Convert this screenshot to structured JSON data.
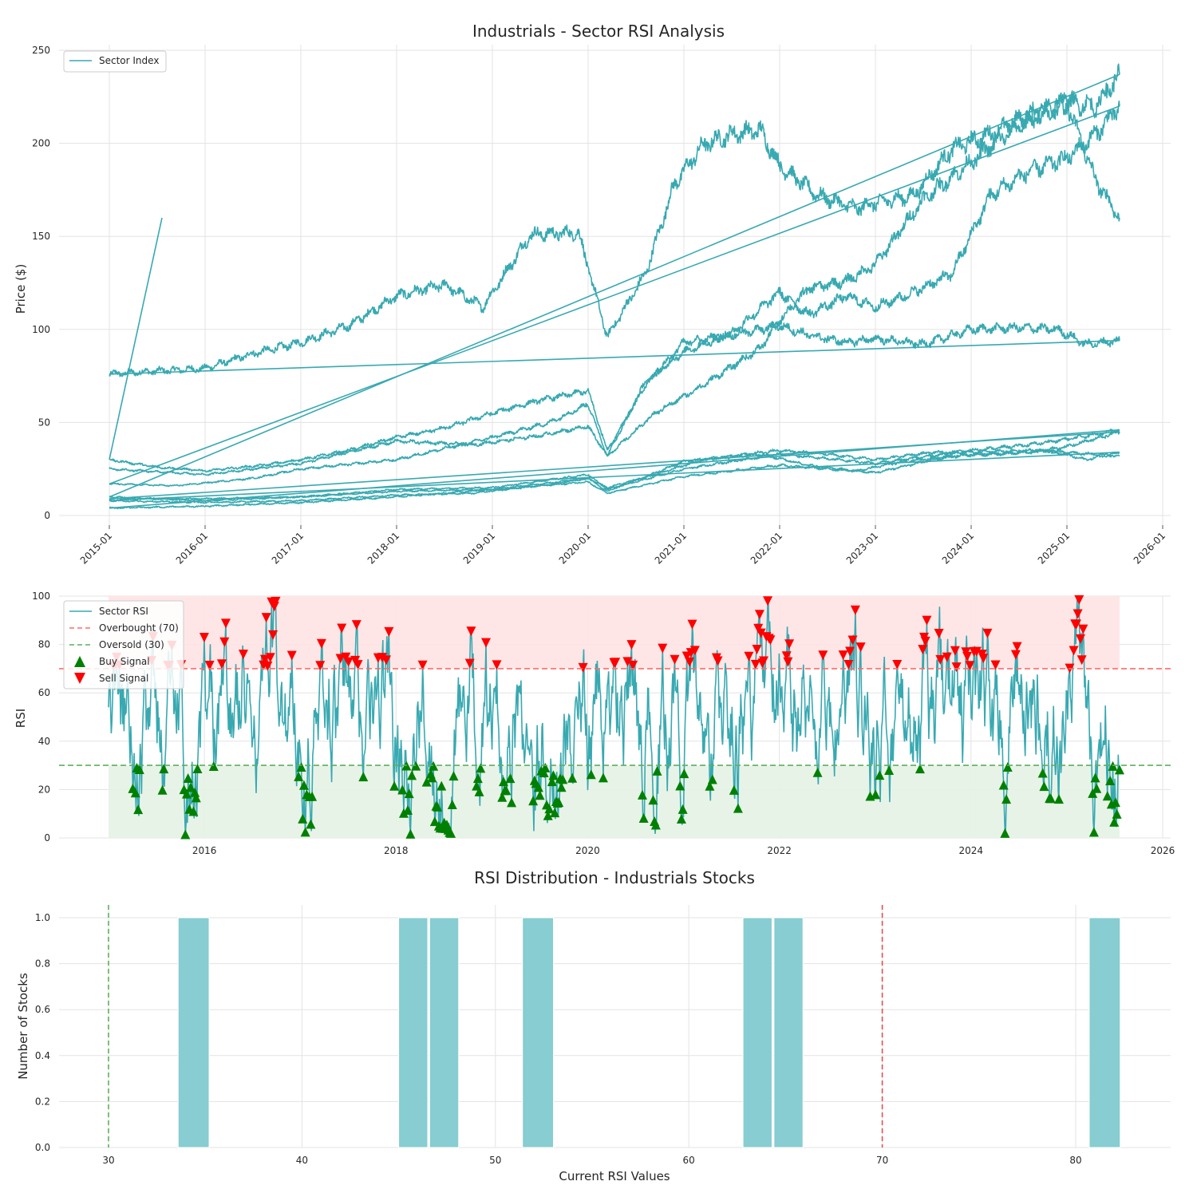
{
  "chart_data": [
    {
      "type": "line",
      "title": "Industrials - Sector RSI Analysis",
      "xlabel": "",
      "ylabel": "Price ($)",
      "ylim": [
        0,
        250
      ],
      "xlim": [
        "2015-01",
        "2026-01"
      ],
      "xticks": [
        "2015-01",
        "2016-01",
        "2017-01",
        "2018-01",
        "2019-01",
        "2020-01",
        "2021-01",
        "2022-01",
        "2023-01",
        "2024-01",
        "2025-01",
        "2026-01"
      ],
      "yticks": [
        0,
        50,
        100,
        150,
        200,
        250
      ],
      "grid": true,
      "legend_position": "top-left",
      "legend": [
        "Sector Index"
      ],
      "line_color": "#38a9b1",
      "series": [
        {
          "values": [
            [
              2015.0,
              76
            ],
            [
              2015.6,
              78
            ],
            [
              2016.0,
              79
            ],
            [
              2016.5,
              87
            ],
            [
              2017.0,
              93
            ],
            [
              2017.5,
              102
            ],
            [
              2018.0,
              118
            ],
            [
              2018.5,
              124
            ],
            [
              2018.9,
              112
            ],
            [
              2019.4,
              151
            ],
            [
              2019.9,
              152
            ],
            [
              2020.2,
              96
            ],
            [
              2020.6,
              130
            ],
            [
              2020.9,
              178
            ],
            [
              2021.2,
              199
            ],
            [
              2021.5,
              205
            ],
            [
              2021.8,
              207
            ],
            [
              2022.0,
              188
            ],
            [
              2022.4,
              172
            ],
            [
              2022.8,
              165
            ],
            [
              2023.0,
              168
            ],
            [
              2023.4,
              172
            ],
            [
              2023.8,
              197
            ],
            [
              2024.2,
              205
            ],
            [
              2024.6,
              215
            ],
            [
              2025.0,
              222
            ],
            [
              2025.3,
              180
            ],
            [
              2025.55,
              160
            ]
          ]
        },
        {
          "values": [
            [
              2015.55,
              160
            ],
            [
              2015.0,
              30
            ]
          ]
        },
        {
          "values": [
            [
              2015.0,
              30
            ],
            [
              2015.5,
              26
            ],
            [
              2016.0,
              24
            ],
            [
              2016.6,
              27
            ],
            [
              2017.0,
              30
            ],
            [
              2017.5,
              35
            ],
            [
              2018.0,
              42
            ],
            [
              2018.5,
              47
            ],
            [
              2019.0,
              55
            ],
            [
              2019.5,
              62
            ],
            [
              2020.0,
              67
            ],
            [
              2020.2,
              35
            ],
            [
              2020.6,
              70
            ],
            [
              2021.0,
              93
            ],
            [
              2021.5,
              97
            ],
            [
              2022.0,
              102
            ],
            [
              2022.3,
              97
            ],
            [
              2022.7,
              93
            ],
            [
              2023.0,
              95
            ],
            [
              2023.5,
              92
            ],
            [
              2024.0,
              100
            ],
            [
              2024.5,
              101
            ],
            [
              2024.9,
              100
            ],
            [
              2025.2,
              92
            ],
            [
              2025.55,
              94
            ]
          ]
        },
        {
          "values": [
            [
              2025.55,
              94
            ],
            [
              2015.0,
              76
            ]
          ]
        },
        {
          "values": [
            [
              2015.0,
              8
            ],
            [
              2016.0,
              7
            ],
            [
              2017.0,
              8
            ],
            [
              2018.0,
              11
            ],
            [
              2018.8,
              12
            ],
            [
              2019.5,
              16
            ],
            [
              2020.0,
              20
            ],
            [
              2020.2,
              15
            ],
            [
              2020.7,
              22
            ],
            [
              2021.2,
              30
            ],
            [
              2021.8,
              33
            ],
            [
              2022.3,
              27
            ],
            [
              2022.8,
              24
            ],
            [
              2023.3,
              29
            ],
            [
              2023.8,
              32
            ],
            [
              2024.3,
              33
            ],
            [
              2024.8,
              35
            ],
            [
              2025.2,
              30
            ],
            [
              2025.55,
              34
            ]
          ]
        },
        {
          "values": [
            [
              2025.55,
              34
            ],
            [
              2015.0,
              8
            ]
          ]
        },
        {
          "values": [
            [
              2015.0,
              17
            ],
            [
              2015.7,
              16
            ],
            [
              2016.5,
              20
            ],
            [
              2017.0,
              25
            ],
            [
              2018.0,
              30
            ],
            [
              2019.0,
              42
            ],
            [
              2019.6,
              50
            ],
            [
              2020.0,
              60
            ],
            [
              2020.2,
              32
            ],
            [
              2020.6,
              72
            ],
            [
              2021.0,
              88
            ],
            [
              2021.5,
              98
            ],
            [
              2022.0,
              120
            ],
            [
              2022.3,
              108
            ],
            [
              2022.7,
              118
            ],
            [
              2023.0,
              112
            ],
            [
              2023.4,
              120
            ],
            [
              2023.8,
              130
            ],
            [
              2024.2,
              172
            ],
            [
              2024.6,
              185
            ],
            [
              2025.0,
              192
            ],
            [
              2025.3,
              205
            ],
            [
              2025.55,
              220
            ]
          ]
        },
        {
          "values": [
            [
              2025.55,
              220
            ],
            [
              2015.0,
              17
            ]
          ]
        },
        {
          "values": [
            [
              2015.0,
              25
            ],
            [
              2016.0,
              22
            ],
            [
              2017.0,
              28
            ],
            [
              2018.0,
              40
            ],
            [
              2018.8,
              38
            ],
            [
              2019.5,
              43
            ],
            [
              2020.0,
              48
            ],
            [
              2020.2,
              32
            ],
            [
              2020.7,
              55
            ],
            [
              2021.2,
              70
            ],
            [
              2021.8,
              90
            ],
            [
              2022.0,
              105
            ],
            [
              2022.3,
              122
            ],
            [
              2022.7,
              126
            ],
            [
              2023.0,
              135
            ],
            [
              2023.5,
              170
            ],
            [
              2024.0,
              190
            ],
            [
              2024.5,
              210
            ],
            [
              2025.0,
              222
            ],
            [
              2025.3,
              220
            ],
            [
              2025.55,
              237
            ]
          ]
        },
        {
          "values": [
            [
              2025.55,
              237
            ],
            [
              2015.0,
              10
            ]
          ]
        },
        {
          "values": [
            [
              2015.0,
              10
            ],
            [
              2016.0,
              8
            ],
            [
              2017.0,
              10
            ],
            [
              2018.0,
              13
            ],
            [
              2019.0,
              14
            ],
            [
              2020.0,
              18
            ],
            [
              2020.2,
              12
            ],
            [
              2021.0,
              21
            ],
            [
              2022.0,
              27
            ],
            [
              2023.0,
              23
            ],
            [
              2023.6,
              30
            ],
            [
              2024.0,
              33
            ],
            [
              2024.6,
              34
            ],
            [
              2025.0,
              37
            ],
            [
              2025.55,
              45
            ]
          ]
        },
        {
          "values": [
            [
              2025.55,
              45
            ],
            [
              2015.0,
              9
            ]
          ]
        },
        {
          "values": [
            [
              2015.0,
              9
            ],
            [
              2016.0,
              9
            ],
            [
              2017.0,
              10
            ],
            [
              2018.0,
              14
            ],
            [
              2019.0,
              15
            ],
            [
              2020.0,
              22
            ],
            [
              2020.2,
              14
            ],
            [
              2021.0,
              25
            ],
            [
              2022.0,
              33
            ],
            [
              2023.0,
              28
            ],
            [
              2024.0,
              35
            ],
            [
              2024.6,
              38
            ],
            [
              2025.0,
              41
            ],
            [
              2025.55,
              46
            ]
          ]
        },
        {
          "values": [
            [
              2025.55,
              46
            ],
            [
              2015.0,
              4
            ]
          ]
        },
        {
          "values": [
            [
              2015.0,
              4
            ],
            [
              2016.0,
              5
            ],
            [
              2017.0,
              7
            ],
            [
              2018.0,
              10
            ],
            [
              2019.0,
              14
            ],
            [
              2020.0,
              20
            ],
            [
              2020.2,
              13
            ],
            [
              2021.0,
              29
            ],
            [
              2022.0,
              35
            ],
            [
              2022.5,
              33
            ],
            [
              2023.0,
              30
            ],
            [
              2023.6,
              34
            ],
            [
              2024.0,
              34
            ],
            [
              2024.6,
              35
            ],
            [
              2025.0,
              34
            ],
            [
              2025.55,
              32
            ]
          ]
        }
      ]
    },
    {
      "type": "line",
      "title": "",
      "xlabel": "",
      "ylabel": "RSI",
      "ylim": [
        0,
        100
      ],
      "xlim": [
        2015.0,
        2026.0
      ],
      "xticks": [
        2016,
        2018,
        2020,
        2022,
        2024,
        2026
      ],
      "yticks": [
        0,
        20,
        40,
        60,
        80,
        100
      ],
      "grid": true,
      "legend_position": "top-left",
      "legend": [
        "Sector RSI",
        "Overbought (70)",
        "Oversold (30)",
        "Buy Signal",
        "Sell Signal"
      ],
      "overbought": 70,
      "oversold": 30,
      "rsi_start": 2015.0,
      "rsi_end": 2025.55,
      "colors": {
        "rsi": "#38a9b1",
        "overbought": "#ff6b6b",
        "oversold": "#5fae5f",
        "buy": "#008000",
        "sell": "#ff0000",
        "overbought_fill": "#ffe3e3",
        "oversold_fill": "#e6f2e6"
      }
    },
    {
      "type": "bar",
      "title": "RSI Distribution - Industrials Stocks",
      "xlabel": "Current RSI Values",
      "ylabel": "Number of Stocks",
      "xlim": [
        28,
        85
      ],
      "ylim": [
        0,
        1.05
      ],
      "xticks": [
        30,
        40,
        50,
        60,
        70,
        80
      ],
      "yticks": [
        0.0,
        0.2,
        0.4,
        0.6,
        0.8,
        1.0
      ],
      "grid": true,
      "bins": [
        [
          33.6,
          35.2
        ],
        [
          45.0,
          46.5
        ],
        [
          46.6,
          48.1
        ],
        [
          51.4,
          53.0
        ],
        [
          62.8,
          64.3
        ],
        [
          64.4,
          65.9
        ],
        [
          80.7,
          82.3
        ]
      ],
      "values": [
        1,
        1,
        1,
        1,
        1,
        1,
        1
      ],
      "reference_lines": [
        30,
        70
      ],
      "colors": {
        "bar": "#87cdd1",
        "oversold_line": "#5fae5f",
        "overbought_line": "#e05050"
      }
    }
  ]
}
